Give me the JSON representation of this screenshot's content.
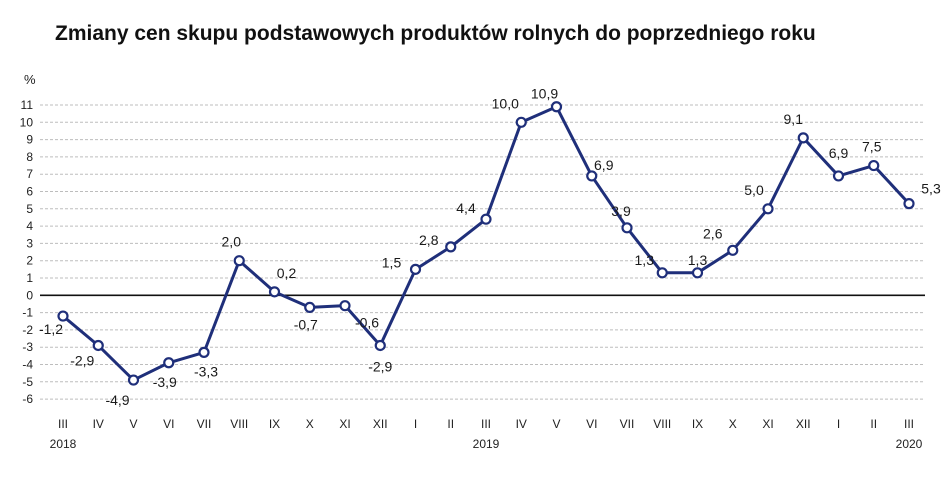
{
  "chart_data": {
    "type": "line",
    "title": "Zmiany cen skupu podstawowych produktów rolnych do poprzedniego roku",
    "ylabel": "%",
    "xlabel": "",
    "ylim": [
      -6,
      11
    ],
    "yticks": [
      "11",
      "10",
      "9",
      "8",
      "7",
      "6",
      "5",
      "4",
      "3",
      "2",
      "1",
      "0",
      "-1",
      "-2",
      "-3",
      "-4",
      "-5",
      "-6"
    ],
    "categories": [
      "III",
      "IV",
      "V",
      "VI",
      "VII",
      "VIII",
      "IX",
      "X",
      "XI",
      "XII",
      "I",
      "II",
      "III",
      "IV",
      "V",
      "VI",
      "VII",
      "VIII",
      "IX",
      "X",
      "XI",
      "XII",
      "I",
      "II",
      "III"
    ],
    "years": [
      {
        "label": "2018",
        "index": 0
      },
      {
        "label": "2019",
        "index": 12
      },
      {
        "label": "2020",
        "index": 24
      }
    ],
    "values": [
      -1.2,
      -2.9,
      -4.9,
      -3.9,
      -3.3,
      2.0,
      0.2,
      -0.7,
      -0.6,
      -2.9,
      1.5,
      2.8,
      4.4,
      10.0,
      10.9,
      6.9,
      3.9,
      1.3,
      1.3,
      2.6,
      5.0,
      9.1,
      6.9,
      7.5,
      5.3
    ],
    "labels": [
      "-1,2",
      "-2,9",
      "-4,9",
      "-3,9",
      "-3,3",
      "2,0",
      "0,2",
      "-0,7",
      "-0,6",
      "-2,9",
      "1,5",
      "2,8",
      "4,4",
      "10,0",
      "10,9",
      "6,9",
      "3,9",
      "1,3",
      "1,3",
      "2,6",
      "5,0",
      "9,1",
      "6,9",
      "7,5",
      "5,3"
    ],
    "grid": true,
    "colors": {
      "line": "#1f2f7a",
      "grid": "#bdbdbd",
      "zero": "#111111",
      "marker_fill": "#ffffff"
    }
  }
}
